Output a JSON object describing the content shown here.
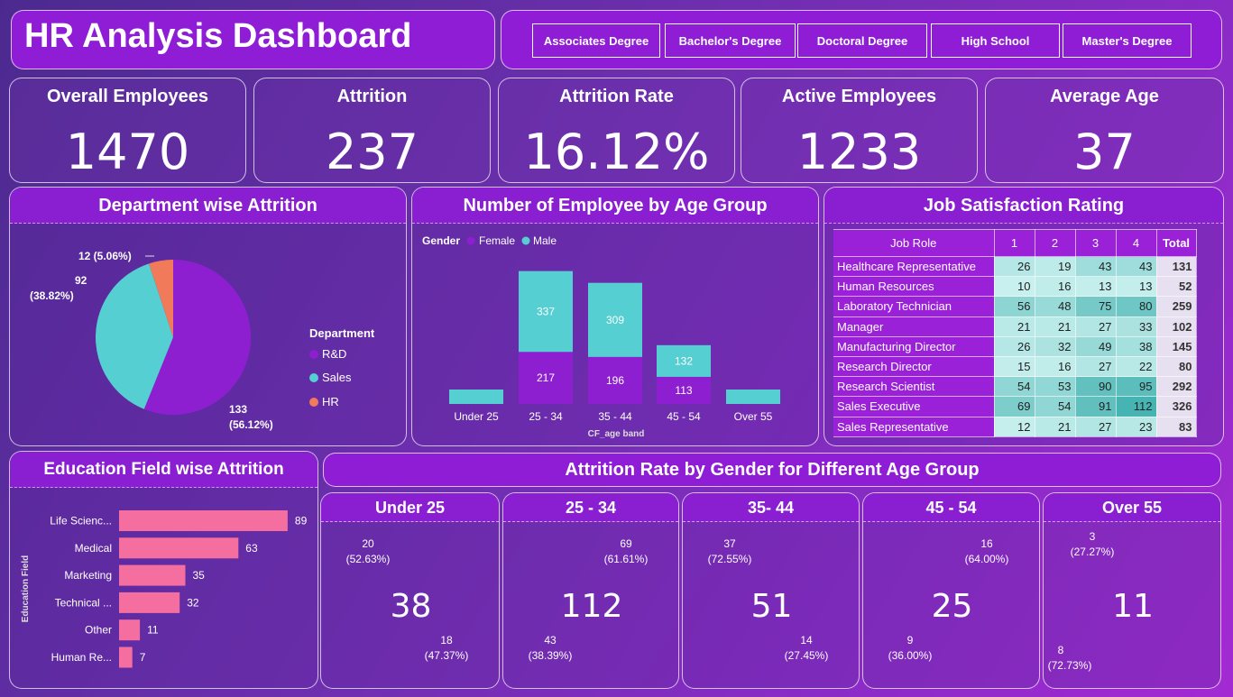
{
  "title": "HR Analysis Dashboard",
  "slicers": [
    "Associates Degree",
    "Bachelor's Degree",
    "Doctoral Degree",
    "High School",
    "Master's Degree"
  ],
  "kpis": [
    {
      "label": "Overall Employees",
      "value": "1470"
    },
    {
      "label": "Attrition",
      "value": "237"
    },
    {
      "label": "Attrition Rate",
      "value": "16.12%"
    },
    {
      "label": "Active Employees",
      "value": "1233"
    },
    {
      "label": "Average Age",
      "value": "37"
    }
  ],
  "dept": {
    "title": "Department wise Attrition",
    "legend_title": "Department",
    "labels": {
      "hr": "12 (5.06%)",
      "sales_a": "92",
      "sales_b": "(38.82%)",
      "rd_a": "133",
      "rd_b": "(56.12%)"
    }
  },
  "age": {
    "title": "Number of Employee by Age Group",
    "legend_title": "Gender",
    "female": "Female",
    "male": "Male",
    "xlabel": "CF_age band"
  },
  "jobsat": {
    "title": "Job Satisfaction Rating",
    "header": [
      "Job Role",
      "1",
      "2",
      "3",
      "4",
      "Total"
    ]
  },
  "edu": {
    "title": "Education Field wise Attrition",
    "ylabel": "Education Field"
  },
  "gender_title": "Attrition Rate by Gender for Different Age Group",
  "colors": {
    "female": "#8e1fd0",
    "male": "#55cfd1",
    "hr": "#f07a5a",
    "pink": "#f56ea0",
    "donut_pink": "#f59ac0"
  },
  "chart_data": [
    {
      "type": "pie",
      "title": "Department wise Attrition",
      "legend": [
        "R&D",
        "Sales",
        "HR"
      ],
      "values": [
        133,
        92,
        12
      ],
      "percents": [
        56.12,
        38.82,
        5.06
      ]
    },
    {
      "type": "bar",
      "stacked": true,
      "title": "Number of Employee by Age Group",
      "categories": [
        "Under 25",
        "25 - 34",
        "35 - 44",
        "45 - 54",
        "Over 55"
      ],
      "series": [
        {
          "name": "Female",
          "values": [
            0,
            217,
            196,
            113,
            0
          ]
        },
        {
          "name": "Male",
          "values": [
            0,
            337,
            309,
            132,
            0
          ]
        }
      ],
      "xlabel": "CF_age band"
    },
    {
      "type": "table",
      "title": "Job Satisfaction Rating",
      "columns": [
        "1",
        "2",
        "3",
        "4",
        "Total"
      ],
      "rows": [
        {
          "role": "Healthcare Representative",
          "v": [
            26,
            19,
            43,
            43
          ],
          "total": 131
        },
        {
          "role": "Human Resources",
          "v": [
            10,
            16,
            13,
            13
          ],
          "total": 52
        },
        {
          "role": "Laboratory Technician",
          "v": [
            56,
            48,
            75,
            80
          ],
          "total": 259
        },
        {
          "role": "Manager",
          "v": [
            21,
            21,
            27,
            33
          ],
          "total": 102
        },
        {
          "role": "Manufacturing Director",
          "v": [
            26,
            32,
            49,
            38
          ],
          "total": 145
        },
        {
          "role": "Research Director",
          "v": [
            15,
            16,
            27,
            22
          ],
          "total": 80
        },
        {
          "role": "Research Scientist",
          "v": [
            54,
            53,
            90,
            95
          ],
          "total": 292
        },
        {
          "role": "Sales Executive",
          "v": [
            69,
            54,
            91,
            112
          ],
          "total": 326
        },
        {
          "role": "Sales Representative",
          "v": [
            12,
            21,
            27,
            23
          ],
          "total": 83
        }
      ]
    },
    {
      "type": "bar",
      "orientation": "horizontal",
      "title": "Education Field wise Attrition",
      "categories": [
        "Life Scienc...",
        "Medical",
        "Marketing",
        "Technical ...",
        "Other",
        "Human Re..."
      ],
      "values": [
        89,
        63,
        35,
        32,
        11,
        7
      ],
      "ylabel": "Education Field"
    },
    {
      "type": "pie",
      "donut": true,
      "title": "Under 25",
      "center": "38",
      "male": {
        "value": "20",
        "pct": "(52.63%)"
      },
      "female": {
        "value": "18",
        "pct": "(47.37%)"
      },
      "male_frac": 0.5263
    },
    {
      "type": "pie",
      "donut": true,
      "title": "25 - 34",
      "center": "112",
      "male": {
        "value": "69",
        "pct": "(61.61%)"
      },
      "female": {
        "value": "43",
        "pct": "(38.39%)"
      },
      "male_frac": 0.6161
    },
    {
      "type": "pie",
      "donut": true,
      "title": "35- 44",
      "center": "51",
      "male": {
        "value": "37",
        "pct": "(72.55%)"
      },
      "female": {
        "value": "14",
        "pct": "(27.45%)"
      },
      "male_frac": 0.7255
    },
    {
      "type": "pie",
      "donut": true,
      "title": "45 - 54",
      "center": "25",
      "male": {
        "value": "16",
        "pct": "(64.00%)"
      },
      "female": {
        "value": "9",
        "pct": "(36.00%)"
      },
      "male_frac": 0.64
    },
    {
      "type": "pie",
      "donut": true,
      "title": "Over 55",
      "center": "11",
      "male": {
        "value": "8",
        "pct": "(72.73%)"
      },
      "female": {
        "value": "3",
        "pct": "(27.27%)"
      },
      "male_frac": 0.7273
    }
  ]
}
